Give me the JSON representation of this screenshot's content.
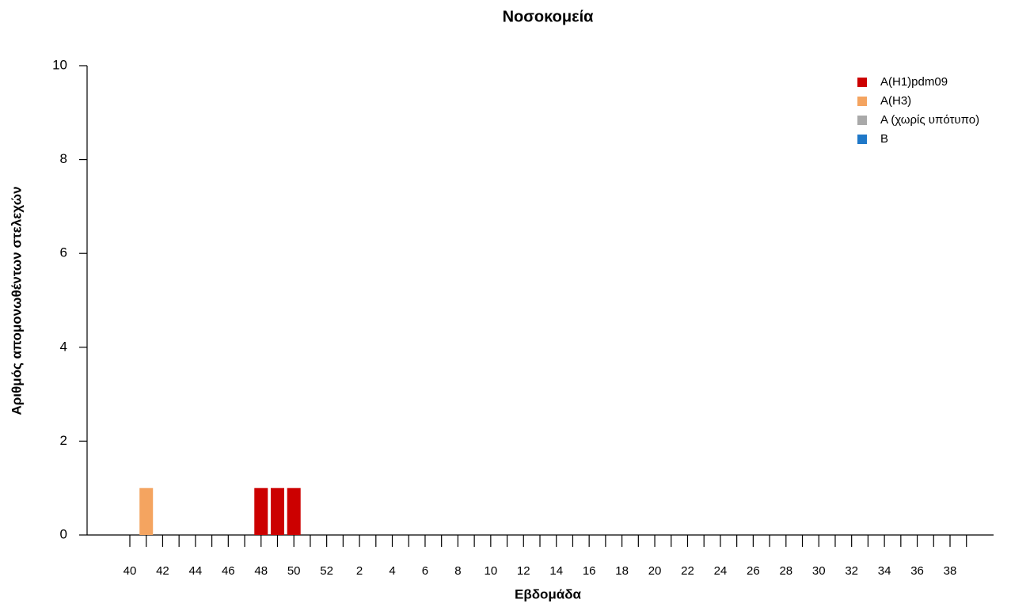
{
  "chart_data": {
    "type": "stacked_bar",
    "title": "Νοσοκομεία",
    "x_label": "Εβδομάδα",
    "y_label": "Αριθμός απομονωθέντων στελεχών",
    "categories": [
      "40",
      null,
      "42",
      null,
      "44",
      null,
      "46",
      null,
      "48",
      null,
      "50",
      null,
      "52",
      null,
      "2",
      null,
      "4",
      null,
      "6",
      null,
      "8",
      null,
      "10",
      null,
      "12",
      null,
      "14",
      null,
      "16",
      null,
      "18",
      null,
      "20",
      null,
      "22",
      null,
      "24",
      null,
      "26",
      null,
      "28",
      null,
      "30",
      null,
      "32",
      null,
      "34",
      null,
      "36",
      null,
      "38",
      null
    ],
    "series": [
      {
        "name": "A(H1)pdm09",
        "color": "#cc0000",
        "values": [
          0,
          0,
          0,
          0,
          0,
          0,
          0,
          0,
          1,
          1,
          1,
          0,
          0,
          0,
          0,
          0,
          0,
          0,
          0,
          0,
          0,
          0,
          0,
          0,
          0,
          0,
          0,
          0,
          0,
          0,
          0,
          0,
          0,
          0,
          0,
          0,
          0,
          0,
          0,
          0,
          0,
          0,
          0,
          0,
          0,
          0,
          0,
          0,
          0,
          0,
          0,
          0
        ]
      },
      {
        "name": "A(H3)",
        "color": "#f4a460",
        "values": [
          0,
          1,
          0,
          0,
          0,
          0,
          0,
          0,
          0,
          0,
          0,
          0,
          0,
          0,
          0,
          0,
          0,
          0,
          0,
          0,
          0,
          0,
          0,
          0,
          0,
          0,
          0,
          0,
          0,
          0,
          0,
          0,
          0,
          0,
          0,
          0,
          0,
          0,
          0,
          0,
          0,
          0,
          0,
          0,
          0,
          0,
          0,
          0,
          0,
          0,
          0,
          0
        ]
      },
      {
        "name": "A (χωρίς υπότυπο)",
        "color": "#a9a9a9",
        "values": [
          0,
          0,
          0,
          0,
          0,
          0,
          0,
          0,
          0,
          0,
          0,
          0,
          0,
          0,
          0,
          0,
          0,
          0,
          0,
          0,
          0,
          0,
          0,
          0,
          0,
          0,
          0,
          0,
          0,
          0,
          0,
          0,
          0,
          0,
          0,
          0,
          0,
          0,
          0,
          0,
          0,
          0,
          0,
          0,
          0,
          0,
          0,
          0,
          0,
          0,
          0,
          0
        ]
      },
      {
        "name": "B",
        "color": "#1f78c8",
        "values": [
          0,
          0,
          0,
          0,
          0,
          0,
          0,
          0,
          0,
          0,
          0,
          0,
          0,
          0,
          0,
          0,
          0,
          0,
          0,
          0,
          0,
          0,
          0,
          0,
          0,
          0,
          0,
          0,
          0,
          0,
          0,
          0,
          0,
          0,
          0,
          0,
          0,
          0,
          0,
          0,
          0,
          0,
          0,
          0,
          0,
          0,
          0,
          0,
          0,
          0,
          0,
          0
        ]
      }
    ],
    "ylim": [
      0,
      10
    ],
    "yticks": [
      0,
      2,
      4,
      6,
      8,
      10
    ],
    "legend": "top-right"
  }
}
